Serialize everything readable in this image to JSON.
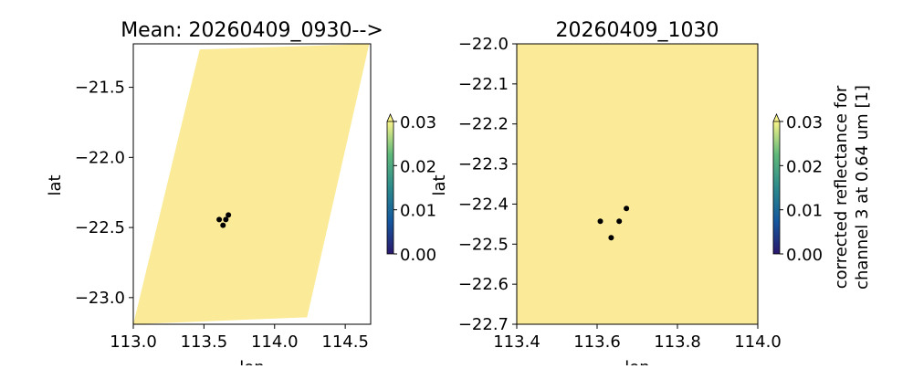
{
  "chart_data": [
    {
      "type": "scatter",
      "title": "Mean: 20260409_0930-->",
      "xlabel": "lon",
      "ylabel": "lat",
      "xlim": [
        113.0,
        114.68
      ],
      "ylim": [
        -23.19,
        -21.19
      ],
      "xticks": [
        113.0,
        113.5,
        114.0,
        114.5
      ],
      "xtick_labels": [
        "113.0",
        "113.5",
        "114.0",
        "114.5"
      ],
      "yticks": [
        -21.5,
        -22.0,
        -22.5,
        -23.0
      ],
      "ytick_labels": [
        "−21.5",
        "−22.0",
        "−22.5",
        "−23.0"
      ],
      "grid": false,
      "swath_polygon": {
        "lon": [
          113.47,
          114.67,
          114.23,
          113.0
        ],
        "lat": [
          -21.23,
          -21.19,
          -23.14,
          -23.19
        ],
        "value": 0.03,
        "color": "#fbeb99"
      },
      "points": {
        "lon": [
          113.608,
          113.655,
          113.673,
          113.635
        ],
        "lat": [
          -22.443,
          -22.443,
          -22.411,
          -22.484
        ],
        "color": "#000000"
      },
      "colorbar": {
        "range": [
          0.0,
          0.03
        ],
        "ticks": [
          "0.00",
          "0.01",
          "0.02",
          "0.03"
        ],
        "extend": "max",
        "label": "",
        "colors": [
          "#2a186c",
          "#14589f",
          "#2c8a8c",
          "#5fb97a",
          "#f9f48a"
        ]
      }
    },
    {
      "type": "scatter",
      "title": "20260409_1030",
      "xlabel": "lon",
      "ylabel": "lat",
      "xlim": [
        113.4,
        114.0
      ],
      "ylim": [
        -22.7,
        -22.0
      ],
      "xticks": [
        113.4,
        113.6,
        113.8,
        114.0
      ],
      "xtick_labels": [
        "113.4",
        "113.6",
        "113.8",
        "114.0"
      ],
      "yticks": [
        -22.0,
        -22.1,
        -22.2,
        -22.3,
        -22.4,
        -22.5,
        -22.6,
        -22.7
      ],
      "ytick_labels": [
        "−22.0",
        "−22.1",
        "−22.2",
        "−22.3",
        "−22.4",
        "−22.5",
        "−22.6",
        "−22.7"
      ],
      "grid": false,
      "background_value": 0.03,
      "background_color": "#fbeb99",
      "points": {
        "lon": [
          113.608,
          113.655,
          113.673,
          113.635
        ],
        "lat": [
          -22.443,
          -22.443,
          -22.411,
          -22.484
        ],
        "color": "#000000"
      },
      "colorbar": {
        "range": [
          0.0,
          0.03
        ],
        "ticks": [
          "0.00",
          "0.01",
          "0.02",
          "0.03"
        ],
        "extend": "max",
        "label_lines": [
          "corrected reflectance for",
          "channel 3 at 0.64 um [1]"
        ],
        "colors": [
          "#2a186c",
          "#14589f",
          "#2c8a8c",
          "#5fb97a",
          "#f9f48a"
        ]
      }
    }
  ]
}
